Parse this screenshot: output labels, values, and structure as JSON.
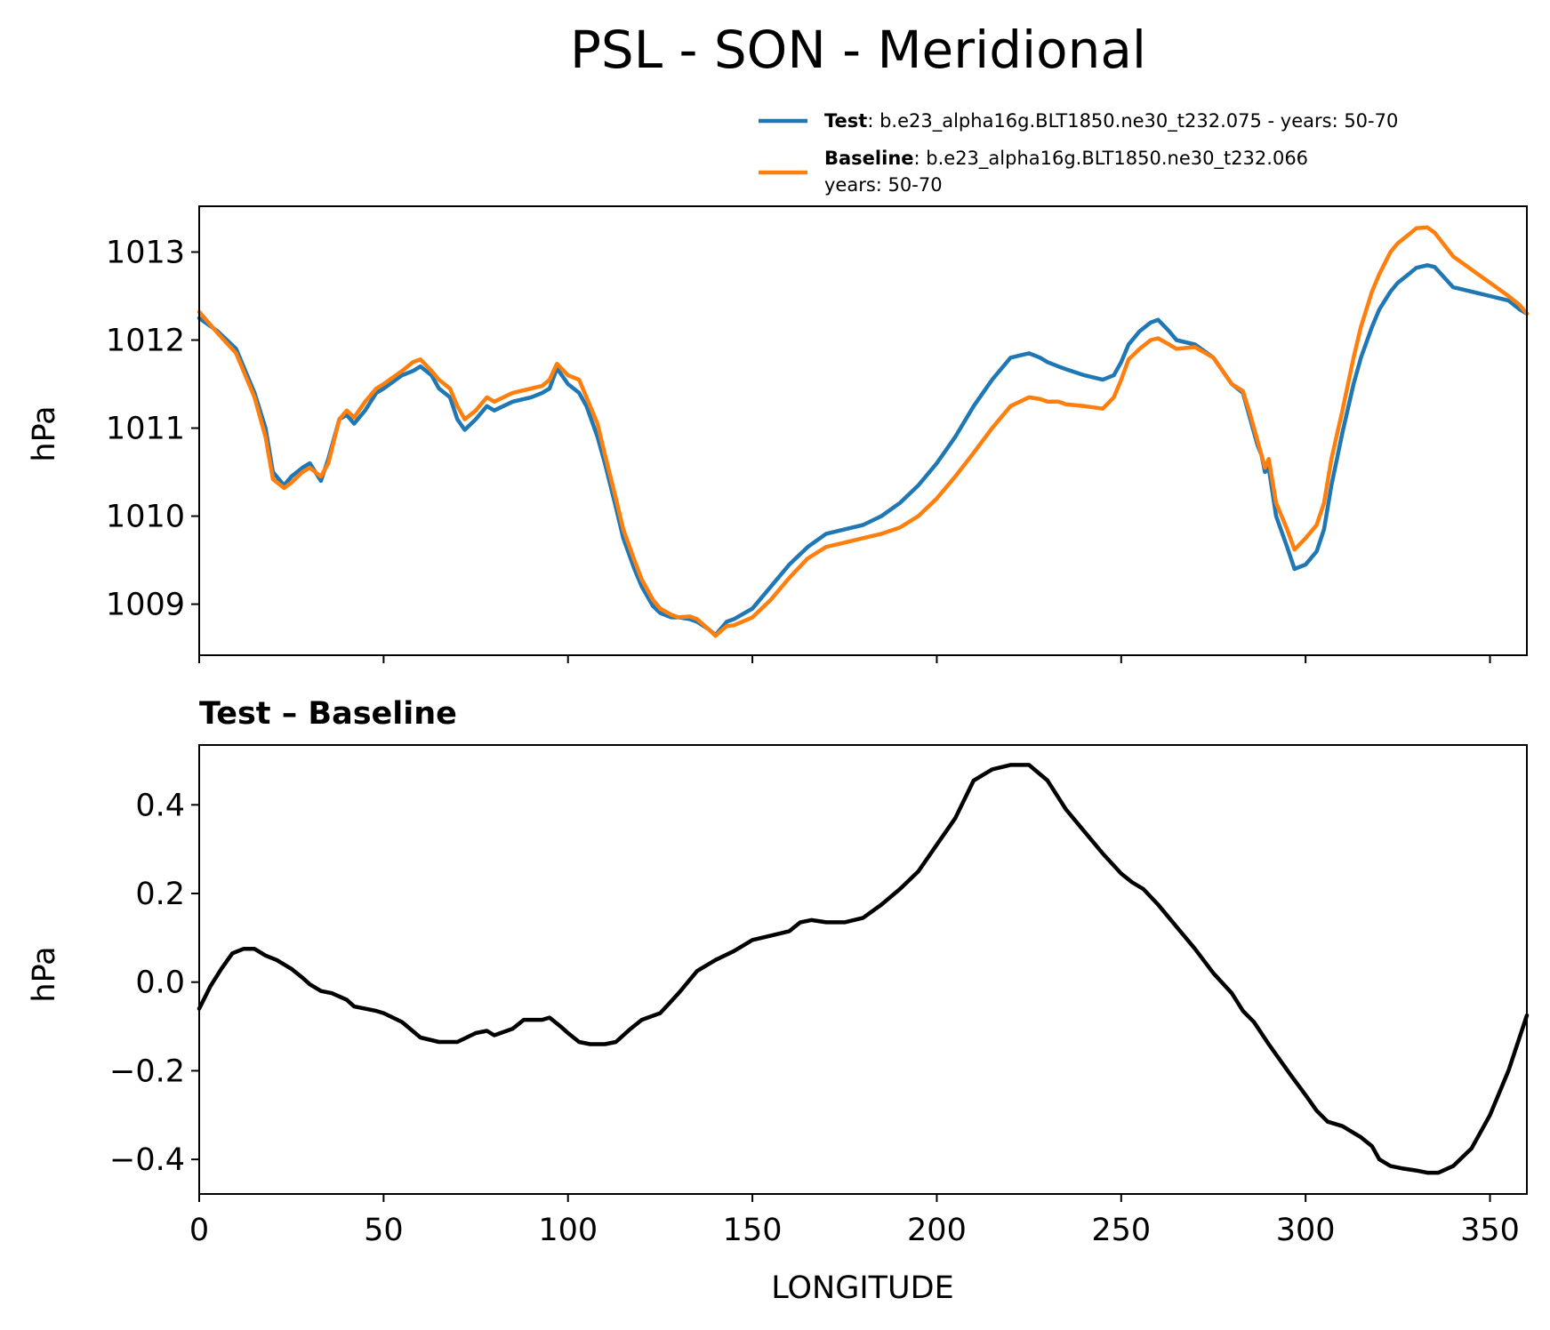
{
  "chart_data": [
    {
      "type": "line",
      "title": "PSL - SON - Meridional",
      "xlabel": "",
      "ylabel": "hPa",
      "xlim": [
        0,
        360
      ],
      "ylim": [
        1008.42,
        1013.52
      ],
      "yticks": [
        1009,
        1010,
        1011,
        1012,
        1013
      ],
      "xticks": [
        0,
        50,
        100,
        150,
        200,
        250,
        300,
        350
      ],
      "legend": {
        "position": "top-right",
        "entries": [
          {
            "name": "Test",
            "text": ": b.e23_alpha16g.BLT1850.ne30_t232.075 - years: 50-70",
            "text2": ""
          },
          {
            "name": "Baseline",
            "text": ": b.e23_alpha16g.BLT1850.ne30_t232.066",
            "text2": "years: 50-70"
          }
        ]
      },
      "series": [
        {
          "name": "Test",
          "color": "#1f77b4",
          "x": [
            0,
            5,
            10,
            15,
            18,
            20,
            23,
            25,
            28,
            30,
            33,
            35,
            38,
            40,
            42,
            45,
            48,
            50,
            55,
            58,
            60,
            63,
            65,
            68,
            70,
            72,
            75,
            78,
            80,
            85,
            90,
            93,
            95,
            97,
            100,
            103,
            105,
            108,
            110,
            113,
            115,
            118,
            120,
            123,
            125,
            128,
            130,
            133,
            135,
            138,
            140,
            141,
            143,
            145,
            150,
            155,
            160,
            165,
            170,
            175,
            180,
            185,
            190,
            195,
            200,
            205,
            210,
            215,
            220,
            225,
            228,
            230,
            233,
            235,
            240,
            245,
            248,
            250,
            252,
            255,
            258,
            260,
            263,
            265,
            270,
            275,
            280,
            283,
            285,
            287,
            288,
            289,
            290,
            292,
            295,
            297,
            300,
            303,
            305,
            307,
            310,
            313,
            315,
            318,
            320,
            323,
            325,
            328,
            330,
            333,
            335,
            340,
            345,
            350,
            355,
            358,
            360
          ],
          "values": [
            1012.25,
            1012.1,
            1011.9,
            1011.4,
            1011.0,
            1010.5,
            1010.35,
            1010.45,
            1010.55,
            1010.6,
            1010.4,
            1010.65,
            1011.1,
            1011.15,
            1011.05,
            1011.2,
            1011.4,
            1011.45,
            1011.6,
            1011.65,
            1011.7,
            1011.6,
            1011.45,
            1011.35,
            1011.1,
            1010.98,
            1011.1,
            1011.25,
            1011.2,
            1011.3,
            1011.35,
            1011.4,
            1011.45,
            1011.68,
            1011.5,
            1011.4,
            1011.25,
            1010.9,
            1010.6,
            1010.1,
            1009.75,
            1009.4,
            1009.2,
            1008.98,
            1008.9,
            1008.85,
            1008.85,
            1008.83,
            1008.8,
            1008.72,
            1008.65,
            1008.7,
            1008.8,
            1008.83,
            1008.95,
            1009.2,
            1009.45,
            1009.65,
            1009.8,
            1009.85,
            1009.9,
            1010.0,
            1010.15,
            1010.35,
            1010.6,
            1010.9,
            1011.25,
            1011.55,
            1011.8,
            1011.85,
            1011.8,
            1011.75,
            1011.7,
            1011.67,
            1011.6,
            1011.55,
            1011.6,
            1011.75,
            1011.95,
            1012.1,
            1012.2,
            1012.23,
            1012.1,
            1012.0,
            1011.95,
            1011.8,
            1011.5,
            1011.4,
            1011.1,
            1010.8,
            1010.7,
            1010.5,
            1010.55,
            1010.0,
            1009.65,
            1009.4,
            1009.45,
            1009.6,
            1009.85,
            1010.35,
            1010.95,
            1011.5,
            1011.8,
            1012.15,
            1012.35,
            1012.55,
            1012.65,
            1012.75,
            1012.82,
            1012.85,
            1012.83,
            1012.6,
            1012.55,
            1012.5,
            1012.45,
            1012.35,
            1012.3
          ]
        },
        {
          "name": "Baseline",
          "color": "#ff7f0e",
          "x": [
            0,
            5,
            10,
            15,
            18,
            20,
            23,
            25,
            28,
            30,
            33,
            35,
            38,
            40,
            42,
            45,
            48,
            50,
            55,
            58,
            60,
            63,
            65,
            68,
            70,
            72,
            75,
            78,
            80,
            85,
            90,
            93,
            95,
            97,
            100,
            103,
            105,
            108,
            110,
            113,
            115,
            118,
            120,
            123,
            125,
            128,
            130,
            133,
            135,
            138,
            140,
            141,
            143,
            145,
            150,
            155,
            160,
            165,
            170,
            175,
            180,
            185,
            190,
            195,
            200,
            205,
            210,
            215,
            220,
            225,
            228,
            230,
            233,
            235,
            240,
            245,
            248,
            250,
            252,
            255,
            258,
            260,
            263,
            265,
            270,
            275,
            280,
            283,
            285,
            287,
            288,
            289,
            290,
            292,
            295,
            297,
            300,
            303,
            305,
            307,
            310,
            313,
            315,
            318,
            320,
            323,
            325,
            328,
            330,
            333,
            335,
            340,
            345,
            350,
            355,
            358,
            360
          ],
          "values": [
            1012.32,
            1012.08,
            1011.85,
            1011.35,
            1010.9,
            1010.42,
            1010.32,
            1010.38,
            1010.5,
            1010.55,
            1010.45,
            1010.6,
            1011.1,
            1011.2,
            1011.12,
            1011.3,
            1011.45,
            1011.5,
            1011.65,
            1011.75,
            1011.78,
            1011.65,
            1011.55,
            1011.45,
            1011.25,
            1011.1,
            1011.2,
            1011.35,
            1011.3,
            1011.4,
            1011.45,
            1011.48,
            1011.55,
            1011.73,
            1011.6,
            1011.55,
            1011.35,
            1011.05,
            1010.7,
            1010.2,
            1009.85,
            1009.5,
            1009.28,
            1009.05,
            1008.95,
            1008.88,
            1008.85,
            1008.86,
            1008.83,
            1008.72,
            1008.64,
            1008.68,
            1008.75,
            1008.76,
            1008.85,
            1009.05,
            1009.3,
            1009.52,
            1009.65,
            1009.7,
            1009.75,
            1009.8,
            1009.87,
            1010.0,
            1010.2,
            1010.45,
            1010.72,
            1011.0,
            1011.25,
            1011.35,
            1011.33,
            1011.3,
            1011.3,
            1011.27,
            1011.25,
            1011.22,
            1011.35,
            1011.55,
            1011.78,
            1011.9,
            1012.0,
            1012.02,
            1011.95,
            1011.9,
            1011.92,
            1011.8,
            1011.5,
            1011.42,
            1011.15,
            1010.85,
            1010.7,
            1010.55,
            1010.65,
            1010.15,
            1009.85,
            1009.62,
            1009.75,
            1009.9,
            1010.15,
            1010.65,
            1011.2,
            1011.8,
            1012.15,
            1012.55,
            1012.75,
            1013.0,
            1013.1,
            1013.2,
            1013.27,
            1013.28,
            1013.22,
            1012.95,
            1012.8,
            1012.65,
            1012.5,
            1012.4,
            1012.3
          ]
        }
      ]
    },
    {
      "type": "line",
      "title": "Test – Baseline",
      "xlabel": "LONGITUDE",
      "ylabel": "hPa",
      "xlim": [
        0,
        360
      ],
      "ylim": [
        -0.478,
        0.535
      ],
      "yticks": [
        0.4,
        0.2,
        0.0,
        -0.2,
        -0.4
      ],
      "ytick_labels": [
        "0.4",
        "0.2",
        "0.0",
        "−0.2",
        "−0.4"
      ],
      "xticks": [
        0,
        50,
        100,
        150,
        200,
        250,
        300,
        350
      ],
      "xtick_labels": [
        "0",
        "50",
        "100",
        "150",
        "200",
        "250",
        "300",
        "350"
      ],
      "series": [
        {
          "name": "Test - Baseline",
          "color": "#000000",
          "x": [
            0,
            3,
            6,
            9,
            12,
            15,
            18,
            21,
            25,
            28,
            30,
            33,
            36,
            40,
            42,
            45,
            48,
            50,
            55,
            60,
            65,
            70,
            75,
            78,
            80,
            85,
            88,
            90,
            93,
            95,
            98,
            100,
            103,
            106,
            110,
            113,
            117,
            120,
            125,
            130,
            135,
            140,
            145,
            150,
            155,
            160,
            163,
            166,
            170,
            175,
            180,
            185,
            190,
            195,
            200,
            205,
            210,
            215,
            220,
            225,
            230,
            235,
            240,
            245,
            250,
            253,
            256,
            260,
            265,
            270,
            275,
            280,
            283,
            286,
            290,
            293,
            296,
            300,
            303,
            306,
            310,
            315,
            318,
            320,
            323,
            326,
            330,
            333,
            336,
            340,
            345,
            350,
            355,
            360
          ],
          "values": [
            -0.06,
            -0.01,
            0.03,
            0.065,
            0.075,
            0.075,
            0.06,
            0.05,
            0.03,
            0.01,
            -0.005,
            -0.02,
            -0.025,
            -0.04,
            -0.055,
            -0.06,
            -0.065,
            -0.07,
            -0.09,
            -0.125,
            -0.135,
            -0.135,
            -0.115,
            -0.11,
            -0.12,
            -0.105,
            -0.085,
            -0.085,
            -0.085,
            -0.08,
            -0.1,
            -0.115,
            -0.135,
            -0.14,
            -0.14,
            -0.135,
            -0.105,
            -0.085,
            -0.07,
            -0.025,
            0.025,
            0.05,
            0.07,
            0.095,
            0.105,
            0.115,
            0.135,
            0.14,
            0.135,
            0.135,
            0.145,
            0.175,
            0.21,
            0.25,
            0.31,
            0.37,
            0.455,
            0.48,
            0.49,
            0.49,
            0.455,
            0.39,
            0.34,
            0.29,
            0.245,
            0.225,
            0.21,
            0.175,
            0.125,
            0.075,
            0.02,
            -0.025,
            -0.065,
            -0.09,
            -0.14,
            -0.175,
            -0.21,
            -0.255,
            -0.29,
            -0.315,
            -0.325,
            -0.35,
            -0.37,
            -0.4,
            -0.415,
            -0.42,
            -0.425,
            -0.43,
            -0.43,
            -0.415,
            -0.375,
            -0.3,
            -0.2,
            -0.075
          ]
        }
      ]
    }
  ]
}
